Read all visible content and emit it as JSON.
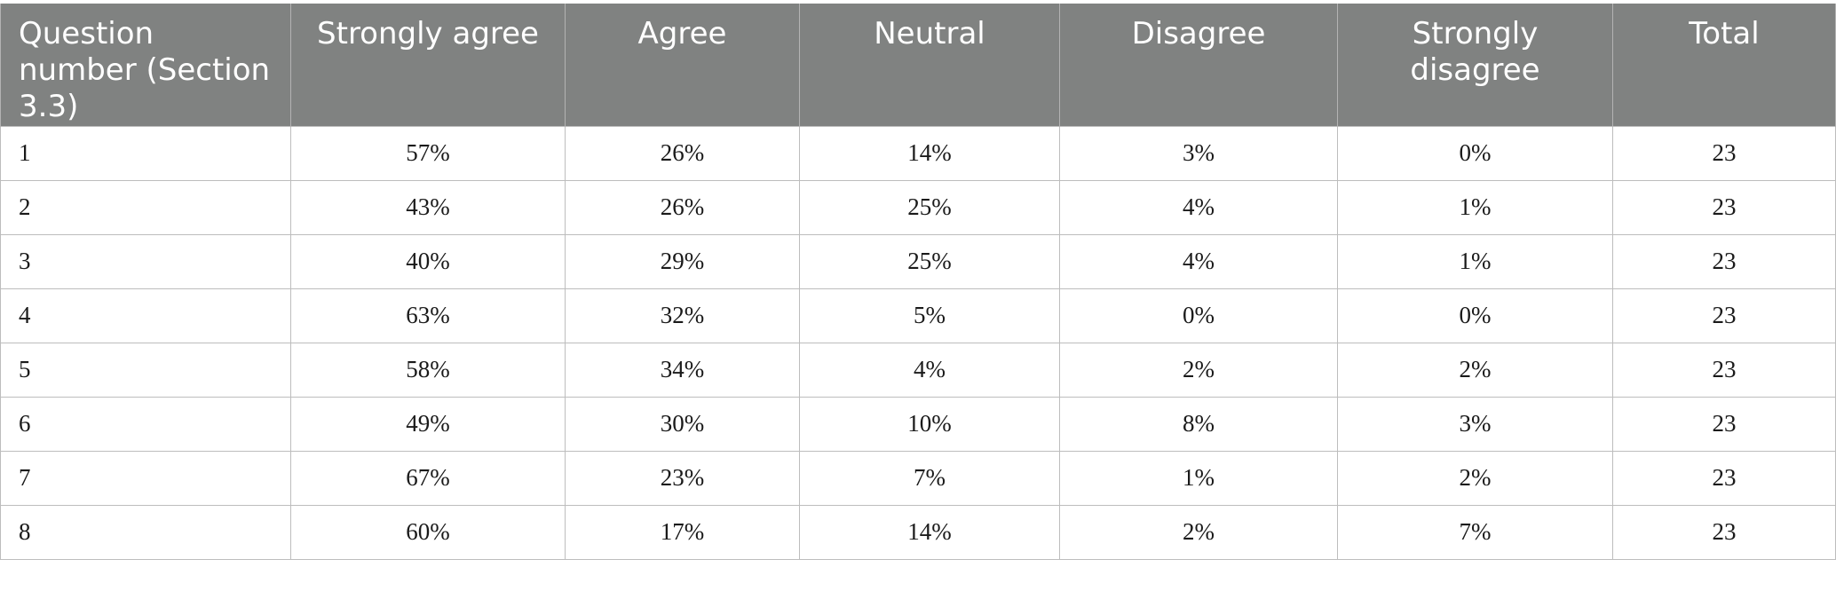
{
  "table": {
    "headers": [
      "Question number (Section 3.3)",
      "Strongly agree",
      "Agree",
      "Neutral",
      "Disagree",
      "Strongly disagree",
      "Total"
    ],
    "rows": [
      [
        "1",
        "57%",
        "26%",
        "14%",
        "3%",
        "0%",
        "23"
      ],
      [
        "2",
        "43%",
        "26%",
        "25%",
        "4%",
        "1%",
        "23"
      ],
      [
        "3",
        "40%",
        "29%",
        "25%",
        "4%",
        "1%",
        "23"
      ],
      [
        "4",
        "63%",
        "32%",
        "5%",
        "0%",
        "0%",
        "23"
      ],
      [
        "5",
        "58%",
        "34%",
        "4%",
        "2%",
        "2%",
        "23"
      ],
      [
        "6",
        "49%",
        "30%",
        "10%",
        "8%",
        "3%",
        "23"
      ],
      [
        "7",
        "67%",
        "23%",
        "7%",
        "1%",
        "2%",
        "23"
      ],
      [
        "8",
        "60%",
        "17%",
        "14%",
        "2%",
        "7%",
        "23"
      ]
    ]
  }
}
